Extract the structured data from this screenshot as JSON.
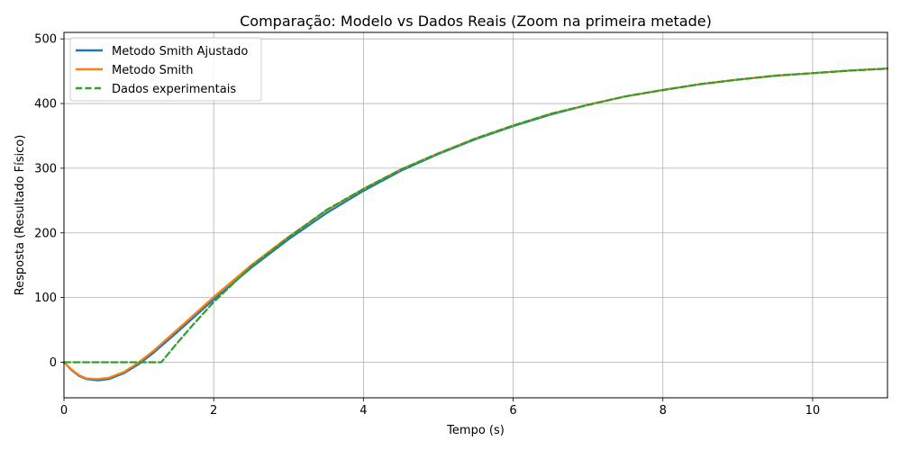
{
  "chart_data": {
    "type": "line",
    "title": "Comparação: Modelo vs Dados Reais (Zoom na primeira metade)",
    "xlabel": "Tempo (s)",
    "ylabel": "Resposta (Resultado Físico)",
    "xlim": [
      0,
      11
    ],
    "ylim": [
      -55,
      510
    ],
    "xticks": [
      0,
      2,
      4,
      6,
      8,
      10
    ],
    "yticks": [
      0,
      100,
      200,
      300,
      400,
      500
    ],
    "grid": true,
    "legend_position": "top-left",
    "series": [
      {
        "name": "Metodo Smith Ajustado",
        "color": "#1f77b4",
        "style": "solid",
        "x": [
          0,
          0.1,
          0.2,
          0.3,
          0.45,
          0.6,
          0.8,
          1.0,
          1.2,
          1.5,
          2.0,
          2.5,
          3.0,
          3.5,
          4.0,
          4.5,
          5.0,
          5.5,
          6.0,
          6.5,
          7.0,
          7.5,
          8.0,
          8.5,
          9.0,
          9.5,
          10.0,
          10.5,
          11.0
        ],
        "y": [
          0,
          -12,
          -21,
          -26,
          -28,
          -26,
          -17,
          -3,
          15,
          45,
          97,
          146,
          190,
          230,
          265,
          296,
          322,
          345,
          365,
          383,
          398,
          411,
          421,
          430,
          437,
          443,
          447,
          451,
          454
        ]
      },
      {
        "name": "Metodo Smith",
        "color": "#ff7f0e",
        "style": "solid",
        "x": [
          0,
          0.1,
          0.2,
          0.3,
          0.45,
          0.6,
          0.8,
          1.0,
          1.2,
          1.5,
          2.0,
          2.5,
          3.0,
          3.5,
          4.0,
          4.5,
          5.0,
          5.5,
          6.0,
          6.5,
          7.0,
          7.5,
          8.0,
          8.5,
          9.0,
          9.5,
          10.0,
          10.5,
          11.0
        ],
        "y": [
          0,
          -11,
          -20,
          -25,
          -26,
          -24,
          -15,
          0,
          18,
          49,
          101,
          150,
          194,
          234,
          268,
          298,
          323,
          346,
          366,
          384,
          398,
          411,
          421,
          430,
          437,
          443,
          447,
          451,
          454
        ]
      },
      {
        "name": "Dados experimentais",
        "color": "#2ca02c",
        "style": "dashed",
        "x": [
          0,
          0.5,
          1.0,
          1.3,
          1.5,
          1.7,
          2.0,
          2.5,
          3.0,
          3.5,
          4.0,
          4.5,
          5.0,
          5.5,
          6.0,
          6.5,
          7.0,
          7.5,
          8.0,
          8.5,
          9.0,
          9.5,
          10.0,
          10.5,
          11.0
        ],
        "y": [
          0,
          0,
          0,
          0,
          28,
          55,
          93,
          148,
          193,
          235,
          268,
          298,
          323,
          346,
          366,
          384,
          398,
          411,
          421,
          430,
          437,
          443,
          447,
          451,
          454
        ]
      }
    ]
  }
}
